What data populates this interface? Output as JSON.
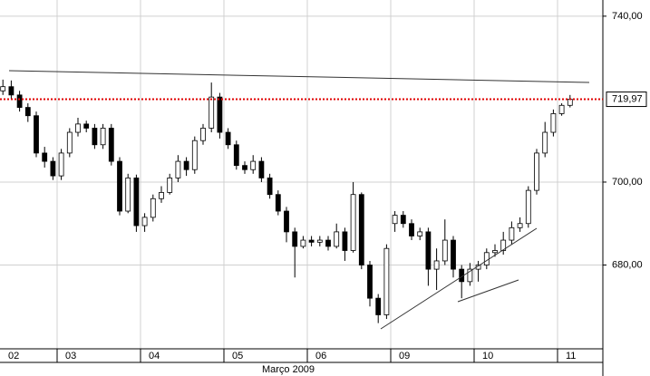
{
  "chart_data": {
    "type": "candlestick",
    "up_color": "#ffffff",
    "down_color": "#000000",
    "grid": true,
    "ylim": [
      659.8,
      743.9
    ],
    "yticks": [
      {
        "value": 680,
        "label": "680,00"
      },
      {
        "value": 700,
        "label": "700,00"
      },
      {
        "value": 740,
        "label": "740,00"
      }
    ],
    "x_group_label": "Março 2009",
    "last_price": {
      "value": 719.97,
      "label": "719,97"
    },
    "days": [
      {
        "label": "02",
        "open": [
          722,
          723,
          721,
          718,
          716,
          707,
          705
        ],
        "high": [
          724.7,
          724.5,
          722,
          719,
          717,
          708.5,
          706
        ],
        "low": [
          721,
          720,
          717,
          714.5,
          706,
          703.5,
          700.5
        ],
        "close": [
          723,
          721,
          718,
          716,
          707,
          705,
          701.5
        ]
      },
      {
        "label": "03",
        "open": [
          701.5,
          707,
          712,
          714,
          713,
          709,
          713,
          705,
          693,
          701
        ],
        "high": [
          708,
          713,
          715.5,
          714.8,
          714,
          714,
          714,
          706,
          702,
          701.8
        ],
        "low": [
          700.5,
          706,
          711,
          712,
          708,
          708,
          704,
          692,
          692.5,
          688
        ],
        "close": [
          707,
          712,
          714,
          713,
          709,
          713,
          705,
          693,
          701,
          689.5
        ]
      },
      {
        "label": "04",
        "open": [
          689.5,
          691.5,
          696,
          697.5,
          701,
          705,
          703,
          710,
          713,
          720.5
        ],
        "high": [
          692.5,
          697,
          699,
          702,
          706.5,
          706,
          711,
          714,
          724,
          721.5
        ],
        "low": [
          688,
          690.5,
          695,
          697,
          700,
          701.5,
          702,
          709,
          712,
          710.5
        ],
        "close": [
          691.5,
          696,
          697.5,
          701,
          705,
          703,
          710,
          713,
          720.5,
          712
        ]
      },
      {
        "label": "05",
        "open": [
          712,
          709,
          704,
          703,
          705,
          701,
          697,
          693,
          688,
          684.5
        ],
        "high": [
          713,
          710,
          705,
          706.5,
          706,
          702,
          698,
          694,
          689,
          687
        ],
        "low": [
          708,
          703,
          702,
          702,
          700,
          696,
          692,
          685.5,
          677,
          684
        ],
        "close": [
          709,
          704,
          703,
          705,
          701,
          697,
          693,
          688,
          684.5,
          686
        ]
      },
      {
        "label": "06",
        "open": [
          686,
          685.5,
          686,
          684.5,
          688,
          683.5,
          697,
          680,
          672,
          668
        ],
        "high": [
          687,
          687,
          687,
          690,
          689,
          700,
          697.5,
          681,
          673,
          685
        ],
        "low": [
          684.5,
          684.5,
          683.5,
          684,
          681,
          683,
          679,
          670,
          666,
          667
        ],
        "close": [
          685.5,
          686,
          684.5,
          688,
          683.5,
          697,
          680,
          672,
          668,
          684
        ]
      },
      {
        "label": "09",
        "open": [
          690,
          692,
          690,
          687,
          688,
          679,
          681,
          686,
          679,
          676
        ],
        "high": [
          693,
          693,
          691,
          689,
          689,
          684,
          691,
          687,
          680,
          680.5
        ],
        "low": [
          688,
          689,
          686,
          686,
          675,
          674,
          680,
          677,
          672,
          675
        ],
        "close": [
          692,
          690,
          687,
          688,
          679,
          681,
          686,
          679,
          676,
          679
        ]
      },
      {
        "label": "10",
        "open": [
          679,
          680,
          683,
          683.5,
          686,
          689,
          690,
          698,
          707,
          712
        ],
        "high": [
          681,
          684,
          685,
          688,
          690.5,
          691.5,
          699,
          708,
          714.5,
          717.5
        ],
        "low": [
          676,
          679,
          682,
          682.5,
          685,
          688,
          689,
          697,
          706,
          711
        ],
        "close": [
          680,
          683,
          683.5,
          686,
          689,
          690,
          698,
          707,
          712,
          716.5
        ]
      },
      {
        "label": "11",
        "open": [
          716.5,
          718.5
        ],
        "high": [
          719,
          721
        ],
        "low": [
          716,
          718
        ],
        "close": [
          718.5,
          719.97
        ]
      }
    ]
  }
}
